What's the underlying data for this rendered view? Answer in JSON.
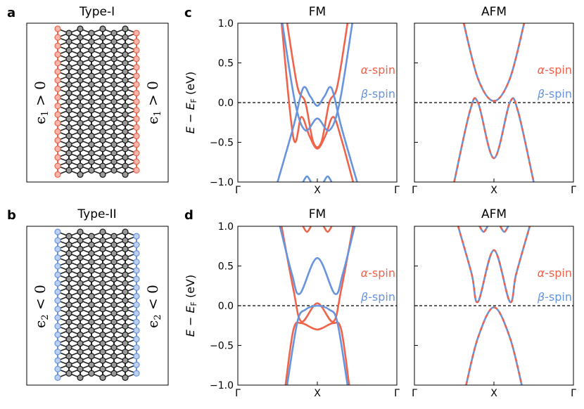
{
  "colors": {
    "alpha": "#f0634b",
    "beta": "#6794dc",
    "lattice": "#222222",
    "dash": "#000000"
  },
  "panels": {
    "a": {
      "letter": "a",
      "title": "Type-I",
      "edge_color": "#f0634b",
      "side_left": "ϵ",
      "side_sub": "1",
      "side_rel": " > 0"
    },
    "b": {
      "letter": "b",
      "title": "Type-II",
      "edge_color": "#6794dc",
      "side_left": "ϵ",
      "side_sub": "2",
      "side_rel": " < 0"
    },
    "c": {
      "letter": "c"
    },
    "d": {
      "letter": "d"
    }
  },
  "ylabel": {
    "E": "E",
    "minus": " − ",
    "EF": "E",
    "F": "F",
    "unit": " (eV)"
  },
  "legend": {
    "alpha_sym": "α",
    "beta_sym": "β",
    "suffix": "-spin"
  },
  "chart_data": [
    {
      "id": "c-FM",
      "type": "line",
      "title": "FM",
      "xlabel_ticks": [
        "Γ",
        "X",
        "Γ"
      ],
      "yticks": [
        "1.0",
        "0.5",
        "0.0",
        "−0.5",
        "−1.0"
      ],
      "ylim": [
        -1.0,
        1.0
      ],
      "xlim": [
        0,
        2
      ],
      "fermi_level": 0.0,
      "series": [
        {
          "name": "α-spin",
          "bands": [
            {
              "x": [
                0.55,
                0.7,
                0.8,
                0.9,
                1.0,
                1.1,
                1.2,
                1.3,
                1.45
              ],
              "y": [
                1.0,
                -0.45,
                -0.18,
                -0.42,
                -0.58,
                -0.42,
                -0.18,
                -0.45,
                -1.0
              ]
            },
            {
              "x": [
                0.62,
                0.75,
                0.85,
                0.95,
                1.05,
                1.15,
                1.25,
                1.38
              ],
              "y": [
                1.0,
                0.2,
                0.0,
                -0.5,
                -0.5,
                0.0,
                0.2,
                1.0
              ]
            }
          ]
        },
        {
          "name": "β-spin",
          "bands": [
            {
              "x": [
                0.5,
                0.7,
                0.82,
                0.91,
                1.0,
                1.09,
                1.18,
                1.3,
                1.5
              ],
              "y": [
                -1.0,
                -0.3,
                0.18,
                0.08,
                -0.04,
                0.08,
                0.18,
                -0.3,
                -1.0
              ]
            },
            {
              "x": [
                0.56,
                0.72,
                0.85,
                1.0,
                1.15,
                1.28,
                1.44
              ],
              "y": [
                1.0,
                0.0,
                -0.35,
                -0.2,
                -0.35,
                0.0,
                1.0
              ]
            },
            {
              "x": [
                0.82,
                0.87,
                0.92
              ],
              "y": [
                -1.0,
                -0.93,
                -1.0
              ]
            },
            {
              "x": [
                1.08,
                1.13,
                1.18
              ],
              "y": [
                -1.0,
                -0.93,
                -1.0
              ]
            }
          ]
        }
      ]
    },
    {
      "id": "c-AFM",
      "type": "line",
      "title": "AFM",
      "xlabel_ticks": [
        "Γ",
        "X",
        "Γ"
      ],
      "ylim": [
        -1.0,
        1.0
      ],
      "xlim": [
        0,
        2
      ],
      "fermi_level": 0.0,
      "series": [
        {
          "name": "α-spin / β-spin (degenerate)",
          "bands": [
            {
              "x": [
                0.62,
                0.8,
                1.0,
                1.2,
                1.38
              ],
              "y": [
                1.0,
                0.3,
                0.02,
                0.3,
                1.0
              ]
            },
            {
              "x": [
                0.5,
                0.7,
                0.8,
                1.0,
                1.2,
                1.3,
                1.5
              ],
              "y": [
                -1.0,
                -0.1,
                0.0,
                -0.7,
                0.0,
                -0.1,
                -1.0
              ]
            }
          ]
        }
      ]
    },
    {
      "id": "d-FM",
      "type": "line",
      "title": "FM",
      "xlabel_ticks": [
        "Γ",
        "X",
        "Γ"
      ],
      "yticks": [
        "1.0",
        "0.5",
        "0.0",
        "−0.5",
        "−1.0"
      ],
      "ylim": [
        -1.0,
        1.0
      ],
      "xlim": [
        0,
        2
      ],
      "fermi_level": 0.0,
      "series": [
        {
          "name": "α-spin",
          "bands": [
            {
              "x": [
                0.55,
                0.7,
                0.8,
                1.0,
                1.2,
                1.3,
                1.45
              ],
              "y": [
                1.0,
                0.2,
                -0.2,
                0.03,
                -0.2,
                0.2,
                1.0
              ]
            },
            {
              "x": [
                0.6,
                0.7,
                0.8,
                1.0,
                1.2,
                1.3,
                1.4
              ],
              "y": [
                -1.0,
                -0.3,
                -0.22,
                -0.3,
                -0.22,
                -0.3,
                -1.0
              ]
            },
            {
              "x": [
                0.82,
                0.87,
                0.92
              ],
              "y": [
                1.0,
                0.93,
                1.0
              ]
            },
            {
              "x": [
                1.08,
                1.13,
                1.18
              ],
              "y": [
                1.0,
                0.93,
                1.0
              ]
            }
          ]
        },
        {
          "name": "β-spin",
          "bands": [
            {
              "x": [
                0.53,
                0.68,
                0.78,
                1.0,
                1.22,
                1.32,
                1.47
              ],
              "y": [
                1.0,
                0.4,
                0.15,
                0.6,
                0.15,
                0.4,
                1.0
              ]
            },
            {
              "x": [
                0.62,
                0.75,
                0.85,
                1.0,
                1.15,
                1.25,
                1.38
              ],
              "y": [
                -1.0,
                -0.2,
                -0.05,
                0.0,
                -0.05,
                -0.2,
                -1.0
              ]
            }
          ]
        }
      ]
    },
    {
      "id": "d-AFM",
      "type": "line",
      "title": "AFM",
      "xlabel_ticks": [
        "Γ",
        "X",
        "Γ"
      ],
      "ylim": [
        -1.0,
        1.0
      ],
      "xlim": [
        0,
        2
      ],
      "fermi_level": 0.0,
      "series": [
        {
          "name": "α-spin / β-spin (degenerate)",
          "bands": [
            {
              "x": [
                0.55,
                0.72,
                0.8,
                1.0,
                1.2,
                1.28,
                1.45
              ],
              "y": [
                1.0,
                0.4,
                0.05,
                0.7,
                0.05,
                0.4,
                1.0
              ]
            },
            {
              "x": [
                0.65,
                0.8,
                1.0,
                1.2,
                1.35
              ],
              "y": [
                -1.0,
                -0.4,
                -0.02,
                -0.4,
                -1.0
              ]
            },
            {
              "x": [
                0.82,
                0.87,
                0.92
              ],
              "y": [
                1.0,
                0.93,
                1.0
              ]
            },
            {
              "x": [
                1.08,
                1.13,
                1.18
              ],
              "y": [
                1.0,
                0.93,
                1.0
              ]
            }
          ]
        }
      ]
    }
  ]
}
